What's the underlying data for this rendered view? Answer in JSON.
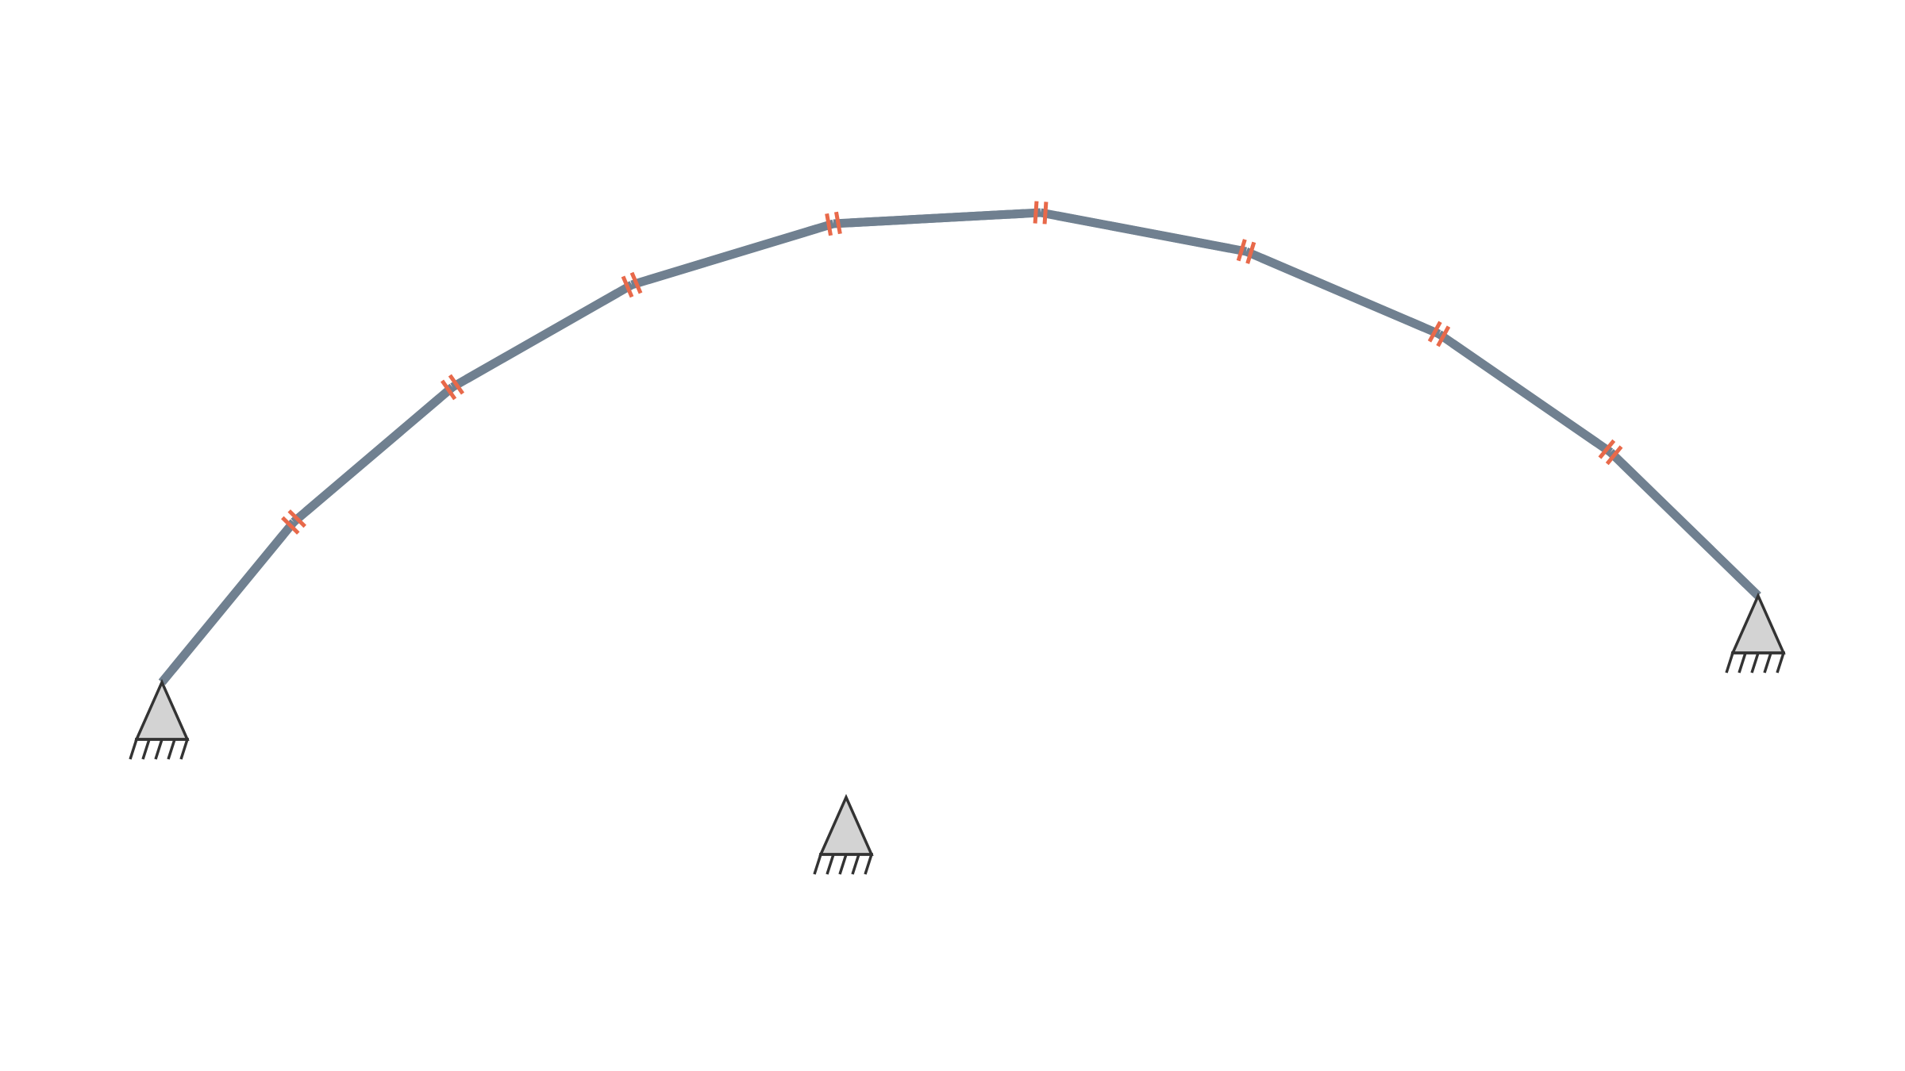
{
  "colors": {
    "background": "#ffffff",
    "member": "#708090",
    "hinge": "#e8694a",
    "support_fill": "#d3d3d3",
    "support_stroke": "#333333"
  },
  "structure": {
    "type": "segmented-arch",
    "segment_count": 10,
    "internal_hinge_count": 9,
    "pinned_support_count": 3,
    "hinge_icon": "hinge-marker",
    "support_icon": "pinned-support-icon"
  }
}
